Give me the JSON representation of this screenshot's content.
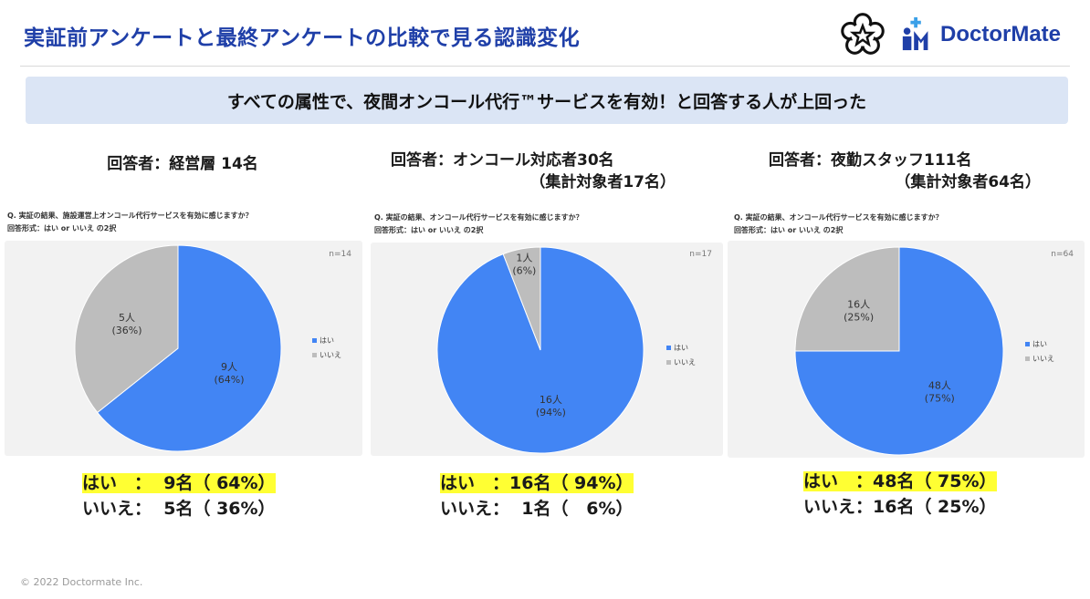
{
  "header": {
    "title": "実証前アンケートと最終アンケートの比較で見る認識変化",
    "brand": "DoctorMate"
  },
  "banner": {
    "text": "すべての属性で、夜間オンコール代行™サービスを有効！と回答する人が上回った"
  },
  "groups": [
    {
      "heading_lines": [
        "回答者：経営層 14名"
      ],
      "question": "Q.  実証の結果、施設運営上オンコール代行サービスを有効に感じますか？",
      "answer_format": "回答形式：はい or いいえ の2択",
      "n_label": "n=14",
      "summary": [
        "はい　：  9名（ 64%）",
        "いいえ：  5名（ 36%）"
      ]
    },
    {
      "heading_lines": [
        "回答者：オンコール対応者30名",
        "（集計対象者17名）"
      ],
      "question": "Q.  実証の結果、オンコール代行サービスを有効に感じますか？",
      "answer_format": "回答形式：はい or いいえ の2択",
      "n_label": "n=17",
      "summary": [
        "はい　：16名（ 94%）",
        "いいえ：  1名（   6%）"
      ]
    },
    {
      "heading_lines": [
        "回答者：夜勤スタッフ111名",
        "（集計対象者64名）"
      ],
      "question": "Q.  実証の結果、オンコール代行サービスを有効に感じますか？",
      "answer_format": "回答形式：はい or いいえ の2択",
      "n_label": "n=64",
      "summary": [
        "はい　：48名（ 75%）",
        "いいえ：16名（ 25%）"
      ]
    }
  ],
  "colors": {
    "yes": "#4285f4",
    "no": "#bdbdbd",
    "title": "#1f3fa8",
    "highlight": "#ffff33",
    "banner": "#dbe5f5"
  },
  "chart_data": [
    {
      "type": "pie",
      "title": "",
      "categories": [
        "はい",
        "いいえ"
      ],
      "values": [
        9,
        5
      ],
      "percent": [
        64,
        36
      ],
      "data_labels": [
        "9人\n(64%)",
        "5人\n(36%)"
      ],
      "legend": [
        "はい",
        "いいえ"
      ],
      "legend_position": "right"
    },
    {
      "type": "pie",
      "title": "",
      "categories": [
        "はい",
        "いいえ"
      ],
      "values": [
        16,
        1
      ],
      "percent": [
        94,
        6
      ],
      "data_labels": [
        "16人\n(94%)",
        "1人\n(6%)"
      ],
      "legend": [
        "はい",
        "いいえ"
      ],
      "legend_position": "right"
    },
    {
      "type": "pie",
      "title": "",
      "categories": [
        "はい",
        "いいえ"
      ],
      "values": [
        48,
        16
      ],
      "percent": [
        75,
        25
      ],
      "data_labels": [
        "48人\n(75%)",
        "16人\n(25%)"
      ],
      "legend": [
        "はい",
        "いいえ"
      ],
      "legend_position": "right"
    }
  ],
  "footer": {
    "copyright": "© 2022 Doctormate Inc."
  }
}
